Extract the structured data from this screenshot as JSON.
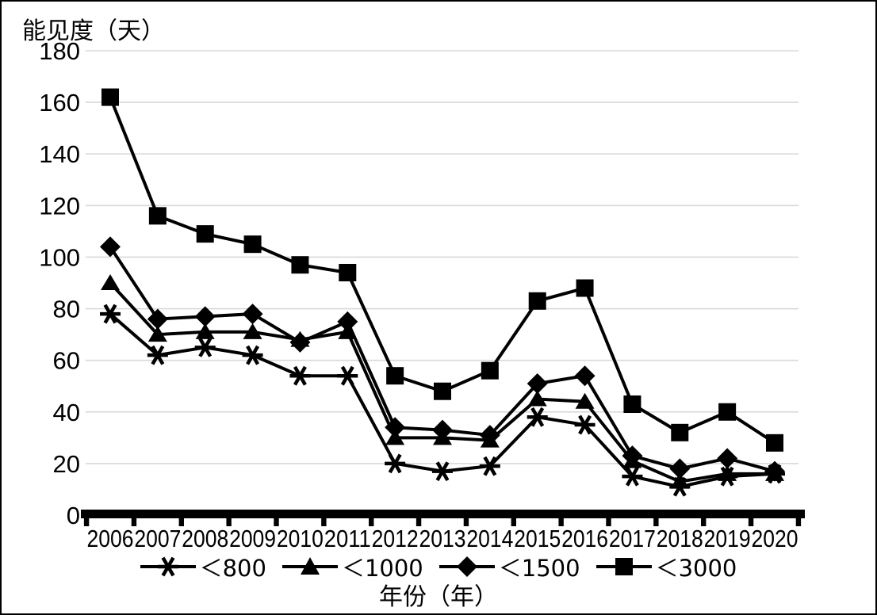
{
  "frame": {
    "background": "#ffffff",
    "border_color": "#000000",
    "line_color": "#000000",
    "gridline_color": "#d9d9d9"
  },
  "chart_data": {
    "type": "line",
    "title": "",
    "ylabel": "能见度（天）",
    "xlabel": "年份（年）",
    "ylim": [
      0,
      180
    ],
    "y_ticks": [
      0,
      20,
      40,
      60,
      80,
      100,
      120,
      140,
      160,
      180
    ],
    "grid": "horizontal-light-gray",
    "legend_position": "bottom",
    "categories": [
      "2006",
      "2007",
      "2008",
      "2009",
      "2010",
      "2011",
      "2012",
      "2013",
      "2014",
      "2015",
      "2016",
      "2017",
      "2018",
      "2019",
      "2020"
    ],
    "series": [
      {
        "name": "＜800",
        "marker": "asterisk",
        "color": "#000000",
        "values": [
          78,
          62,
          65,
          62,
          54,
          54,
          20,
          17,
          19,
          38,
          35,
          15,
          11,
          15,
          16
        ]
      },
      {
        "name": "＜1000",
        "marker": "triangle",
        "color": "#000000",
        "values": [
          90,
          70,
          71,
          71,
          68,
          71,
          30,
          30,
          29,
          45,
          44,
          21,
          13,
          16,
          16
        ]
      },
      {
        "name": "＜1500",
        "marker": "diamond",
        "color": "#000000",
        "values": [
          104,
          76,
          77,
          78,
          67,
          75,
          34,
          33,
          31,
          51,
          54,
          23,
          18,
          22,
          17
        ]
      },
      {
        "name": "＜3000",
        "marker": "square",
        "color": "#000000",
        "values": [
          162,
          116,
          109,
          105,
          97,
          94,
          54,
          48,
          56,
          83,
          88,
          43,
          32,
          40,
          28
        ]
      }
    ]
  }
}
